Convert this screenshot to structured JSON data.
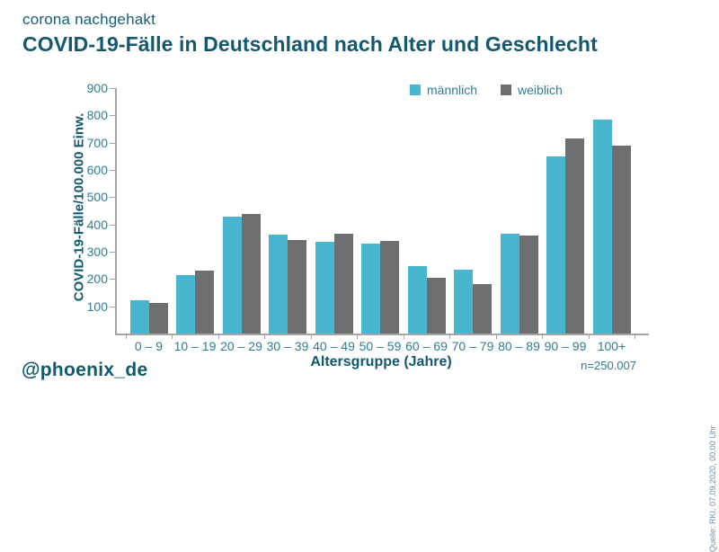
{
  "header": {
    "kicker": "corona nachgehakt",
    "title": "COVID-19-Fälle in Deutschland nach Alter und Geschlecht"
  },
  "footer": {
    "handle": "@phoenix_de",
    "sample_size": "n=250.007",
    "source": "Quelle: RKI, 07.09.2020, 00.00 Uhr"
  },
  "colors": {
    "maennlich": "#47b6ce",
    "weiblich": "#6d6e70",
    "title_teal": "#11596f",
    "tick_teal": "#2e7d92",
    "axis_gray": "#a5a5a5"
  },
  "chart_data": {
    "type": "bar",
    "title": "COVID-19-Fälle in Deutschland nach Alter und Geschlecht",
    "xlabel": "Altersgruppe (Jahre)",
    "ylabel": "COVID-19-Fälle/100.000 Einw.",
    "ylim": [
      0,
      900
    ],
    "yticks": [
      100,
      200,
      300,
      400,
      500,
      600,
      700,
      800,
      900
    ],
    "grid": false,
    "legend_position": "top",
    "categories": [
      "0 – 9",
      "10 – 19",
      "20 – 29",
      "30 – 39",
      "40 – 49",
      "50 – 59",
      "60 – 69",
      "70 – 79",
      "80 – 89",
      "90 – 99",
      "100+"
    ],
    "series": [
      {
        "name": "männlich",
        "color": "#47b6ce",
        "values": [
          122,
          215,
          430,
          362,
          335,
          330,
          248,
          233,
          366,
          650,
          784
        ]
      },
      {
        "name": "weiblich",
        "color": "#6d6e70",
        "values": [
          113,
          232,
          437,
          344,
          366,
          338,
          205,
          180,
          358,
          716,
          689
        ]
      }
    ]
  }
}
